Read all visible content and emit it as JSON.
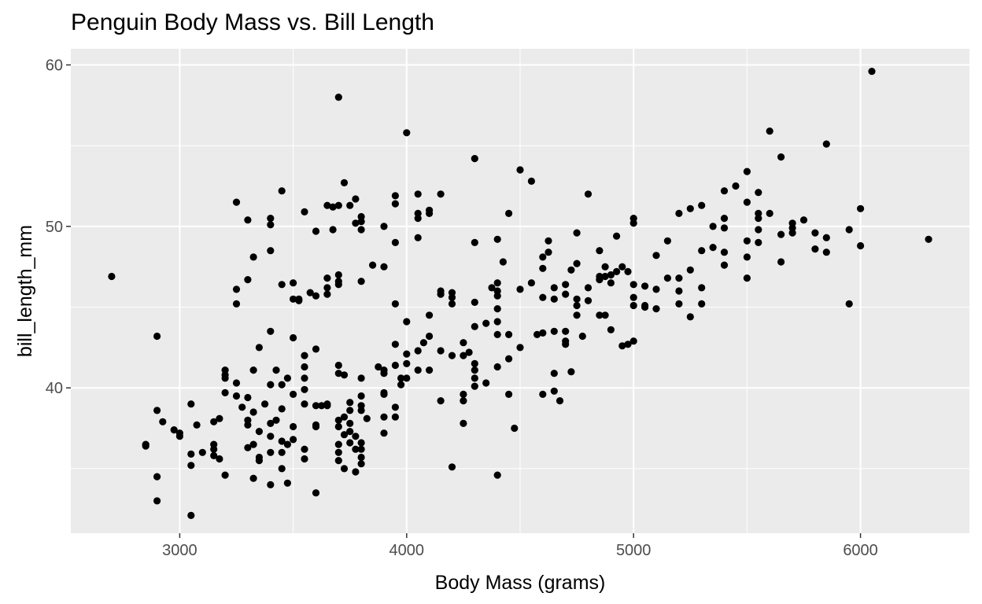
{
  "chart_data": {
    "type": "scatter",
    "title": "Penguin Body Mass vs. Bill Length",
    "xlabel": "Body Mass (grams)",
    "ylabel": "bill_length_mm",
    "xlim": [
      2520,
      6480
    ],
    "ylim": [
      31,
      61
    ],
    "x_ticks": [
      3000,
      4000,
      5000,
      6000
    ],
    "x_minor": [
      3500,
      4500,
      5500
    ],
    "y_ticks": [
      40,
      50,
      60
    ],
    "y_minor": [
      35,
      45,
      55
    ],
    "grid": true,
    "colors": {
      "panel": "#ebebeb",
      "grid": "#ffffff",
      "point": "#000000",
      "tick": "#333333"
    },
    "points": [
      [
        2700,
        46.9
      ],
      [
        2850,
        36.5
      ],
      [
        2850,
        36.4
      ],
      [
        2900,
        43.2
      ],
      [
        2900,
        38.6
      ],
      [
        2900,
        34.5
      ],
      [
        2900,
        33.0
      ],
      [
        2925,
        37.9
      ],
      [
        2975,
        37.4
      ],
      [
        3000,
        37.2
      ],
      [
        3000,
        37.0
      ],
      [
        3050,
        39.0
      ],
      [
        3050,
        35.9
      ],
      [
        3050,
        35.2
      ],
      [
        3050,
        32.1
      ],
      [
        3075,
        37.7
      ],
      [
        3100,
        36.0
      ],
      [
        3150,
        37.9
      ],
      [
        3150,
        36.5
      ],
      [
        3150,
        36.2
      ],
      [
        3150,
        35.8
      ],
      [
        3175,
        38.1
      ],
      [
        3175,
        35.6
      ],
      [
        3200,
        41.1
      ],
      [
        3200,
        40.8
      ],
      [
        3200,
        40.6
      ],
      [
        3200,
        39.7
      ],
      [
        3200,
        34.6
      ],
      [
        3250,
        51.5
      ],
      [
        3250,
        46.1
      ],
      [
        3250,
        45.2
      ],
      [
        3250,
        40.3
      ],
      [
        3250,
        39.5
      ],
      [
        3275,
        38.8
      ],
      [
        3300,
        50.4
      ],
      [
        3300,
        46.7
      ],
      [
        3300,
        39.4
      ],
      [
        3300,
        38.0
      ],
      [
        3300,
        37.7
      ],
      [
        3300,
        36.3
      ],
      [
        3325,
        48.1
      ],
      [
        3325,
        41.1
      ],
      [
        3325,
        38.5
      ],
      [
        3325,
        36.5
      ],
      [
        3325,
        34.4
      ],
      [
        3350,
        42.5
      ],
      [
        3350,
        37.3
      ],
      [
        3350,
        35.7
      ],
      [
        3350,
        35.5
      ],
      [
        3375,
        39.0
      ],
      [
        3400,
        50.5
      ],
      [
        3400,
        50.1
      ],
      [
        3400,
        48.5
      ],
      [
        3400,
        43.5
      ],
      [
        3400,
        40.2
      ],
      [
        3400,
        37.8
      ],
      [
        3400,
        37.0
      ],
      [
        3400,
        36.0
      ],
      [
        3400,
        34.0
      ],
      [
        3425,
        41.1
      ],
      [
        3425,
        38.0
      ],
      [
        3450,
        52.2
      ],
      [
        3450,
        46.4
      ],
      [
        3450,
        40.2
      ],
      [
        3450,
        38.7
      ],
      [
        3450,
        36.7
      ],
      [
        3450,
        36.0
      ],
      [
        3450,
        35.0
      ],
      [
        3475,
        40.6
      ],
      [
        3475,
        36.5
      ],
      [
        3475,
        34.1
      ],
      [
        3500,
        46.5
      ],
      [
        3500,
        45.5
      ],
      [
        3500,
        43.1
      ],
      [
        3500,
        39.6
      ],
      [
        3500,
        37.6
      ],
      [
        3500,
        36.8
      ],
      [
        3525,
        45.5
      ],
      [
        3525,
        45.4
      ],
      [
        3550,
        50.9
      ],
      [
        3550,
        42.0
      ],
      [
        3550,
        41.3
      ],
      [
        3550,
        40.6
      ],
      [
        3550,
        39.9
      ],
      [
        3550,
        39.0
      ],
      [
        3550,
        36.2
      ],
      [
        3550,
        35.6
      ],
      [
        3575,
        45.9
      ],
      [
        3600,
        49.7
      ],
      [
        3600,
        45.7
      ],
      [
        3600,
        42.4
      ],
      [
        3600,
        38.9
      ],
      [
        3600,
        37.6
      ],
      [
        3600,
        37.7
      ],
      [
        3600,
        33.5
      ],
      [
        3625,
        38.9
      ],
      [
        3650,
        39.0
      ],
      [
        3650,
        38.9
      ],
      [
        3650,
        51.3
      ],
      [
        3650,
        46.8
      ],
      [
        3650,
        46.2
      ],
      [
        3650,
        45.8
      ],
      [
        3675,
        49.8
      ],
      [
        3675,
        51.2
      ],
      [
        3700,
        58.0
      ],
      [
        3700,
        51.3
      ],
      [
        3700,
        47.0
      ],
      [
        3700,
        46.6
      ],
      [
        3700,
        46.4
      ],
      [
        3700,
        41.4
      ],
      [
        3700,
        40.9
      ],
      [
        3700,
        38.0
      ],
      [
        3700,
        37.6
      ],
      [
        3700,
        36.5
      ],
      [
        3700,
        36.0
      ],
      [
        3700,
        35.5
      ],
      [
        3725,
        52.7
      ],
      [
        3725,
        40.8
      ],
      [
        3725,
        38.2
      ],
      [
        3725,
        37.1
      ],
      [
        3725,
        35.0
      ],
      [
        3750,
        51.3
      ],
      [
        3750,
        39.1
      ],
      [
        3750,
        38.6
      ],
      [
        3750,
        37.8
      ],
      [
        3750,
        37.3
      ],
      [
        3750,
        36.6
      ],
      [
        3775,
        51.7
      ],
      [
        3775,
        50.2
      ],
      [
        3775,
        37.0
      ],
      [
        3775,
        36.2
      ],
      [
        3775,
        34.8
      ],
      [
        3800,
        50.6
      ],
      [
        3800,
        50.3
      ],
      [
        3800,
        49.8
      ],
      [
        3800,
        46.6
      ],
      [
        3800,
        40.6
      ],
      [
        3800,
        39.5
      ],
      [
        3800,
        38.9
      ],
      [
        3800,
        38.6
      ],
      [
        3800,
        36.6
      ],
      [
        3800,
        36.2
      ],
      [
        3800,
        35.7
      ],
      [
        3800,
        35.3
      ],
      [
        3825,
        38.1
      ],
      [
        3850,
        47.6
      ],
      [
        3875,
        41.3
      ],
      [
        3900,
        50.0
      ],
      [
        3900,
        47.5
      ],
      [
        3900,
        41.1
      ],
      [
        3900,
        40.9
      ],
      [
        3900,
        39.7
      ],
      [
        3900,
        39.6
      ],
      [
        3900,
        38.2
      ],
      [
        3900,
        37.2
      ],
      [
        3950,
        51.9
      ],
      [
        3950,
        51.4
      ],
      [
        3950,
        49.0
      ],
      [
        3950,
        45.2
      ],
      [
        3950,
        42.7
      ],
      [
        3950,
        41.4
      ],
      [
        3950,
        38.8
      ],
      [
        3950,
        38.2
      ],
      [
        3975,
        40.6
      ],
      [
        3975,
        40.2
      ],
      [
        4000,
        55.8
      ],
      [
        4000,
        44.1
      ],
      [
        4000,
        42.1
      ],
      [
        4000,
        41.5
      ],
      [
        4000,
        40.6
      ],
      [
        4050,
        52.0
      ],
      [
        4050,
        50.8
      ],
      [
        4050,
        50.5
      ],
      [
        4050,
        49.3
      ],
      [
        4050,
        42.3
      ],
      [
        4050,
        41.1
      ],
      [
        4075,
        42.8
      ],
      [
        4100,
        51.0
      ],
      [
        4100,
        50.8
      ],
      [
        4100,
        44.5
      ],
      [
        4100,
        43.2
      ],
      [
        4100,
        41.1
      ],
      [
        4150,
        52.0
      ],
      [
        4150,
        46.0
      ],
      [
        4150,
        45.8
      ],
      [
        4150,
        42.3
      ],
      [
        4150,
        39.2
      ],
      [
        4200,
        45.9
      ],
      [
        4200,
        45.6
      ],
      [
        4200,
        45.2
      ],
      [
        4200,
        42.0
      ],
      [
        4200,
        35.1
      ],
      [
        4250,
        42.8
      ],
      [
        4250,
        42.0
      ],
      [
        4250,
        39.6
      ],
      [
        4250,
        39.2
      ],
      [
        4250,
        37.8
      ],
      [
        4275,
        42.2
      ],
      [
        4300,
        54.2
      ],
      [
        4300,
        49.0
      ],
      [
        4300,
        45.3
      ],
      [
        4300,
        43.8
      ],
      [
        4300,
        41.5
      ],
      [
        4300,
        41.1
      ],
      [
        4300,
        40.6
      ],
      [
        4300,
        40.1
      ],
      [
        4350,
        44.0
      ],
      [
        4350,
        40.3
      ],
      [
        4375,
        46.2
      ],
      [
        4400,
        49.2
      ],
      [
        4400,
        46.5
      ],
      [
        4400,
        46.0
      ],
      [
        4400,
        45.7
      ],
      [
        4400,
        44.9
      ],
      [
        4400,
        44.1
      ],
      [
        4400,
        43.3
      ],
      [
        4400,
        41.3
      ],
      [
        4400,
        34.6
      ],
      [
        4425,
        47.8
      ],
      [
        4450,
        50.8
      ],
      [
        4450,
        43.3
      ],
      [
        4450,
        41.8
      ],
      [
        4450,
        39.6
      ],
      [
        4475,
        37.5
      ],
      [
        4500,
        53.5
      ],
      [
        4500,
        46.1
      ],
      [
        4500,
        42.5
      ],
      [
        4550,
        52.8
      ],
      [
        4550,
        46.5
      ],
      [
        4575,
        43.3
      ],
      [
        4600,
        48.1
      ],
      [
        4600,
        47.4
      ],
      [
        4600,
        45.6
      ],
      [
        4600,
        43.4
      ],
      [
        4600,
        39.6
      ],
      [
        4625,
        48.4
      ],
      [
        4625,
        49.1
      ],
      [
        4650,
        45.5
      ],
      [
        4650,
        43.5
      ],
      [
        4650,
        40.9
      ],
      [
        4650,
        39.8
      ],
      [
        4650,
        46.2
      ],
      [
        4675,
        39.2
      ],
      [
        4700,
        46.4
      ],
      [
        4700,
        45.8
      ],
      [
        4700,
        43.5
      ],
      [
        4700,
        42.9
      ],
      [
        4700,
        42.7
      ],
      [
        4725,
        47.3
      ],
      [
        4725,
        41.0
      ],
      [
        4750,
        49.6
      ],
      [
        4750,
        47.7
      ],
      [
        4750,
        45.5
      ],
      [
        4750,
        45.1
      ],
      [
        4750,
        44.5
      ],
      [
        4775,
        43.2
      ],
      [
        4800,
        52.0
      ],
      [
        4800,
        46.2
      ],
      [
        4800,
        45.4
      ],
      [
        4850,
        48.5
      ],
      [
        4850,
        46.9
      ],
      [
        4850,
        46.7
      ],
      [
        4850,
        44.5
      ],
      [
        4875,
        47.5
      ],
      [
        4875,
        46.9
      ],
      [
        4875,
        44.5
      ],
      [
        4900,
        47.0
      ],
      [
        4900,
        46.5
      ],
      [
        4900,
        43.6
      ],
      [
        4925,
        49.4
      ],
      [
        4925,
        47.2
      ],
      [
        4950,
        47.5
      ],
      [
        4950,
        42.6
      ],
      [
        4975,
        47.2
      ],
      [
        4975,
        42.7
      ],
      [
        5000,
        50.5
      ],
      [
        5000,
        50.2
      ],
      [
        5000,
        46.4
      ],
      [
        5000,
        45.6
      ],
      [
        5000,
        45.1
      ],
      [
        5000,
        42.9
      ],
      [
        5050,
        46.3
      ],
      [
        5050,
        45.1
      ],
      [
        5050,
        45.0
      ],
      [
        5100,
        48.2
      ],
      [
        5100,
        46.1
      ],
      [
        5100,
        44.9
      ],
      [
        5150,
        49.1
      ],
      [
        5150,
        46.8
      ],
      [
        5200,
        50.8
      ],
      [
        5200,
        46.8
      ],
      [
        5200,
        46.0
      ],
      [
        5200,
        45.2
      ],
      [
        5250,
        51.1
      ],
      [
        5250,
        47.3
      ],
      [
        5250,
        44.4
      ],
      [
        5300,
        51.3
      ],
      [
        5300,
        48.5
      ],
      [
        5300,
        46.2
      ],
      [
        5300,
        45.2
      ],
      [
        5350,
        50.0
      ],
      [
        5350,
        48.7
      ],
      [
        5400,
        52.2
      ],
      [
        5400,
        50.5
      ],
      [
        5400,
        49.9
      ],
      [
        5400,
        48.4
      ],
      [
        5400,
        47.6
      ],
      [
        5450,
        52.5
      ],
      [
        5500,
        53.4
      ],
      [
        5500,
        51.5
      ],
      [
        5500,
        49.1
      ],
      [
        5500,
        48.1
      ],
      [
        5500,
        46.8
      ],
      [
        5550,
        52.1
      ],
      [
        5550,
        50.8
      ],
      [
        5550,
        50.5
      ],
      [
        5550,
        49.8
      ],
      [
        5550,
        49.0
      ],
      [
        5600,
        55.9
      ],
      [
        5600,
        50.8
      ],
      [
        5650,
        54.3
      ],
      [
        5650,
        49.5
      ],
      [
        5650,
        47.8
      ],
      [
        5700,
        50.2
      ],
      [
        5700,
        49.9
      ],
      [
        5700,
        49.6
      ],
      [
        5750,
        50.4
      ],
      [
        5800,
        49.6
      ],
      [
        5800,
        48.6
      ],
      [
        5850,
        55.1
      ],
      [
        5850,
        49.3
      ],
      [
        5850,
        48.4
      ],
      [
        5950,
        49.8
      ],
      [
        5950,
        45.2
      ],
      [
        6000,
        51.1
      ],
      [
        6000,
        48.8
      ],
      [
        6050,
        59.6
      ],
      [
        6300,
        49.2
      ]
    ]
  }
}
